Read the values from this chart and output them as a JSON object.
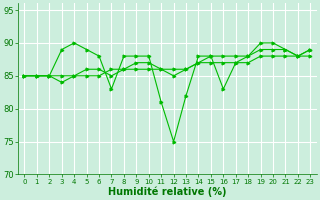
{
  "xlabel": "Humidité relative (%)",
  "bg_color": "#cceedd",
  "grid_color": "#ffffff",
  "line_color": "#00bb00",
  "tick_color": "#007700",
  "xlim": [
    0,
    23
  ],
  "ylim": [
    70,
    96
  ],
  "yticks": [
    70,
    75,
    80,
    85,
    90,
    95
  ],
  "xticks": [
    0,
    1,
    2,
    3,
    4,
    5,
    6,
    7,
    8,
    9,
    10,
    11,
    12,
    13,
    14,
    15,
    16,
    17,
    18,
    19,
    20,
    21,
    22,
    23
  ],
  "series1": [
    85,
    85,
    85,
    89,
    90,
    89,
    88,
    83,
    88,
    88,
    88,
    81,
    75,
    82,
    88,
    88,
    83,
    87,
    88,
    90,
    90,
    89,
    88,
    89
  ],
  "series2": [
    85,
    85,
    85,
    84,
    85,
    86,
    86,
    85,
    86,
    87,
    87,
    86,
    85,
    86,
    87,
    88,
    88,
    88,
    88,
    89,
    89,
    89,
    88,
    89
  ],
  "series3": [
    85,
    85,
    85,
    85,
    85,
    85,
    85,
    86,
    86,
    86,
    86,
    86,
    86,
    86,
    87,
    87,
    87,
    87,
    87,
    88,
    88,
    88,
    88,
    88
  ],
  "xlabel_fontsize": 7,
  "xtick_fontsize": 5,
  "ytick_fontsize": 6,
  "linewidth": 0.8,
  "markersize": 2.0
}
